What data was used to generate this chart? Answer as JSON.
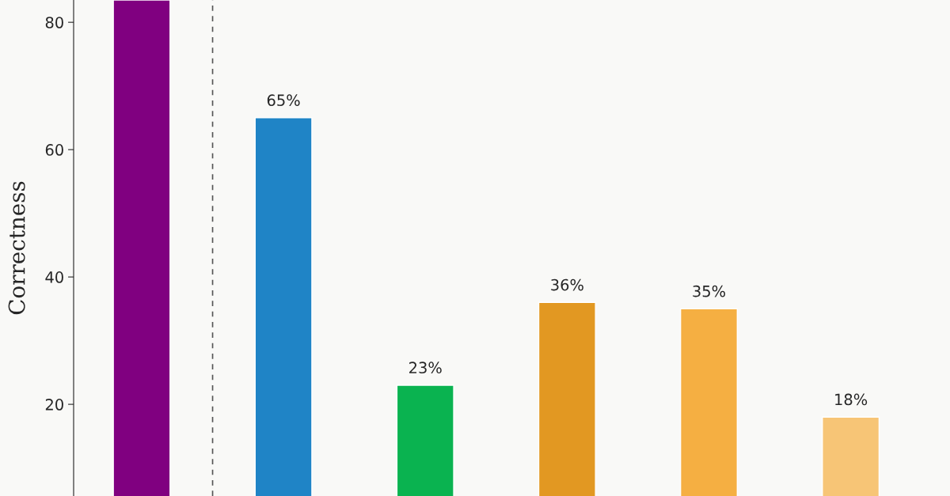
{
  "chart_data": {
    "type": "bar",
    "ylabel": "Correctness",
    "categories": [
      null,
      null,
      null,
      null,
      null,
      null
    ],
    "values": [
      83.5,
      65,
      23,
      36,
      35,
      18
    ],
    "colors": [
      "#800080",
      "#1f84c6",
      "#0ab350",
      "#e29822",
      "#f5af42",
      "#f7c576"
    ],
    "value_labels": [
      null,
      "65%",
      "23%",
      "36%",
      "35%",
      "18%"
    ],
    "ylim": [
      5.6,
      83.5
    ],
    "yticks": [
      20,
      40,
      60,
      80
    ],
    "tick_labels": "y",
    "grid": false,
    "legend": false
  }
}
